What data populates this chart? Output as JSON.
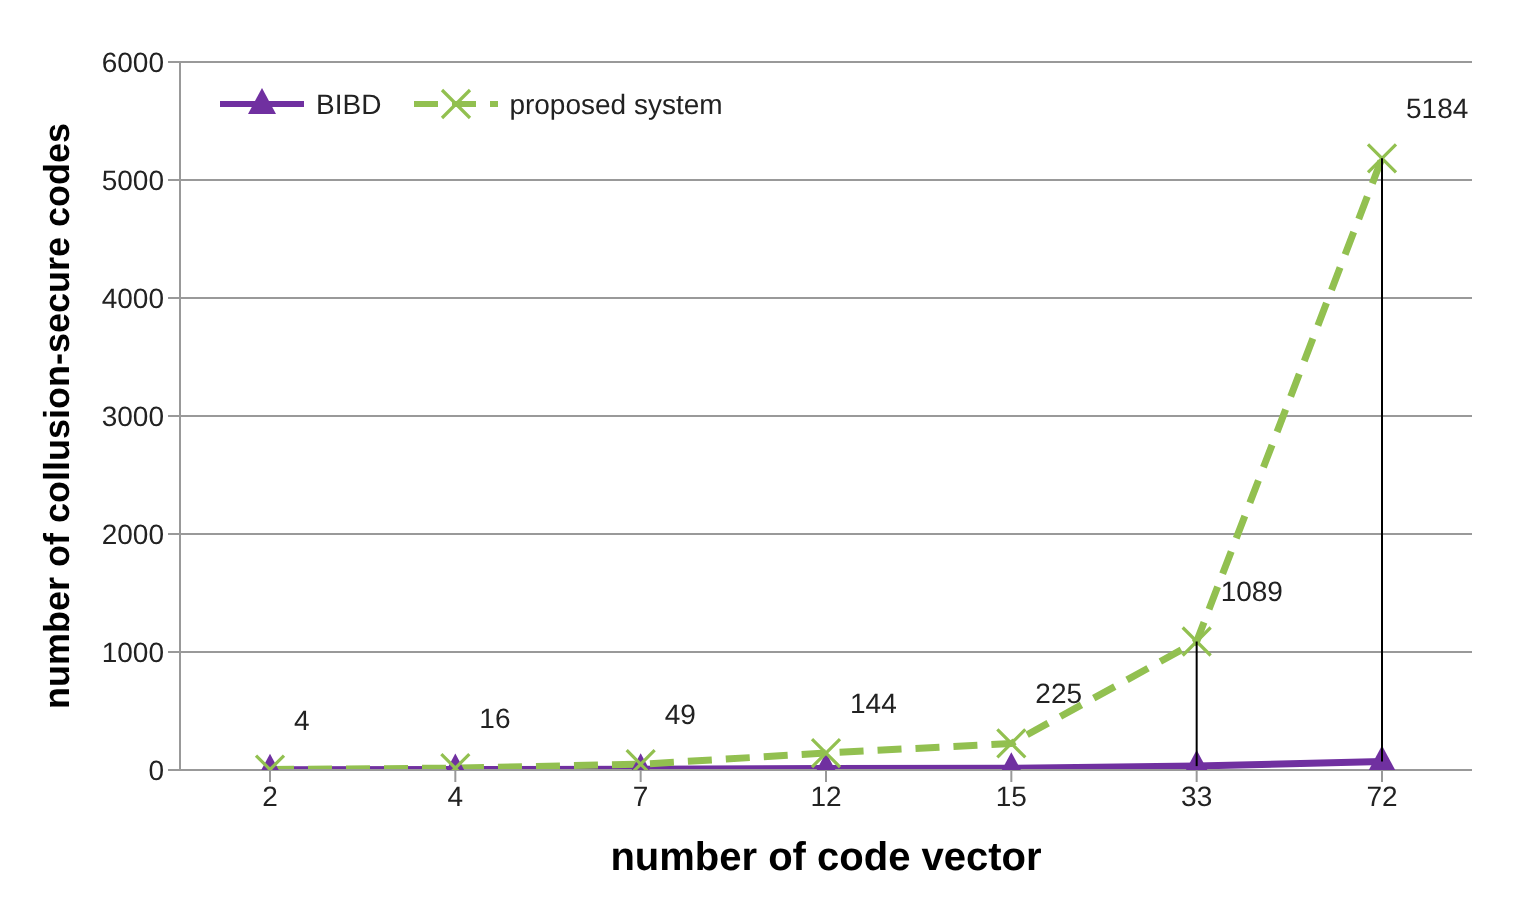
{
  "chart_data": {
    "type": "line",
    "xlabel": "number of code vector",
    "ylabel": "number of collusion-secure codes",
    "categories": [
      "2",
      "4",
      "7",
      "12",
      "15",
      "33",
      "72"
    ],
    "series": [
      {
        "name": "BIBD",
        "color": "#7030a0",
        "values": [
          2,
          4,
          7,
          12,
          15,
          33,
          72
        ],
        "errors": [
          null,
          null,
          null,
          null,
          null,
          [
            33,
            1089
          ],
          [
            72,
            5184
          ]
        ],
        "marker": "triangle",
        "line_style": "solid"
      },
      {
        "name": "proposed system",
        "color": "#92c050",
        "values": [
          4,
          16,
          49,
          144,
          225,
          1089,
          5184
        ],
        "marker": "cross",
        "line_style": "dashed",
        "value_labels": [
          "4",
          "16",
          "49",
          "144",
          "225",
          "1089",
          "5184"
        ]
      }
    ],
    "ylim": [
      0,
      6000
    ],
    "yticks": [
      0,
      1000,
      2000,
      3000,
      4000,
      5000,
      6000
    ],
    "grid": "y",
    "legend": "top left"
  }
}
